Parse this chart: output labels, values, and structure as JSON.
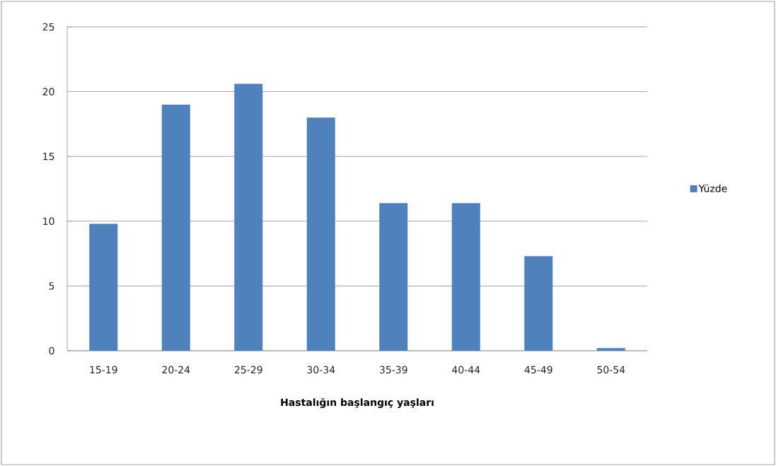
{
  "chart_data": {
    "type": "bar",
    "xlabel": "Hastalığın başlangıç yaşları",
    "categories": [
      "15-19",
      "20-24",
      "25-29",
      "30-34",
      "35-39",
      "40-44",
      "45-49",
      "50-54"
    ],
    "series": [
      {
        "name": "Yüzde",
        "color": "#4f81bd",
        "values": [
          9.8,
          19.0,
          20.6,
          18.0,
          11.4,
          11.4,
          7.3,
          0.2
        ]
      }
    ],
    "ylim": [
      0,
      25
    ],
    "yticks": [
      0,
      5,
      10,
      15,
      20,
      25
    ],
    "grid": "y",
    "legend": "right"
  }
}
